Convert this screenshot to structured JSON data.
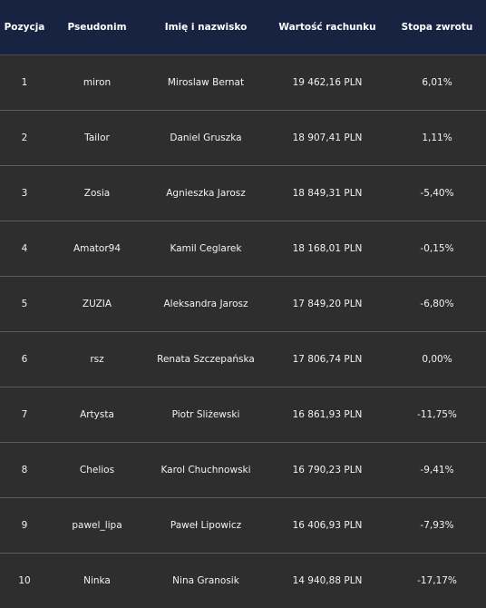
{
  "columns": {
    "position": "Pozycja",
    "nickname": "Pseudonim",
    "full_name": "Imię i nazwisko",
    "account_value": "Wartość rachunku",
    "return_rate": "Stopa zwrotu"
  },
  "rows": [
    {
      "position": "1",
      "nickname": "miron",
      "full_name": "Miroslaw Bernat",
      "account_value": "19 462,16 PLN",
      "return_rate": "6,01%"
    },
    {
      "position": "2",
      "nickname": "Tailor",
      "full_name": "Daniel Gruszka",
      "account_value": "18 907,41 PLN",
      "return_rate": "1,11%"
    },
    {
      "position": "3",
      "nickname": "Zosia",
      "full_name": "Agnieszka Jarosz",
      "account_value": "18 849,31 PLN",
      "return_rate": "-5,40%"
    },
    {
      "position": "4",
      "nickname": "Amator94",
      "full_name": "Kamil Ceglarek",
      "account_value": "18 168,01 PLN",
      "return_rate": "-0,15%"
    },
    {
      "position": "5",
      "nickname": "ZUZIA",
      "full_name": "Aleksandra Jarosz",
      "account_value": "17 849,20 PLN",
      "return_rate": "-6,80%"
    },
    {
      "position": "6",
      "nickname": "rsz",
      "full_name": "Renata Szczepańska",
      "account_value": "17 806,74 PLN",
      "return_rate": "0,00%"
    },
    {
      "position": "7",
      "nickname": "Artysta",
      "full_name": "Piotr Śliżewski",
      "account_value": "16 861,93 PLN",
      "return_rate": "-11,75%"
    },
    {
      "position": "8",
      "nickname": "Chelios",
      "full_name": "Karol Chuchnowski",
      "account_value": "16 790,23 PLN",
      "return_rate": "-9,41%"
    },
    {
      "position": "9",
      "nickname": "pawel_lipa",
      "full_name": "Paweł Lipowicz",
      "account_value": "16 406,93 PLN",
      "return_rate": "-7,93%"
    },
    {
      "position": "10",
      "nickname": "Ninka",
      "full_name": "Nina Granosik",
      "account_value": "14 940,88 PLN",
      "return_rate": "-17,17%"
    }
  ],
  "colors": {
    "header_bg": "#172340",
    "row_bg": "#2e2e2e",
    "divider": "#5c5c5c",
    "text": "#f2f2f2"
  }
}
